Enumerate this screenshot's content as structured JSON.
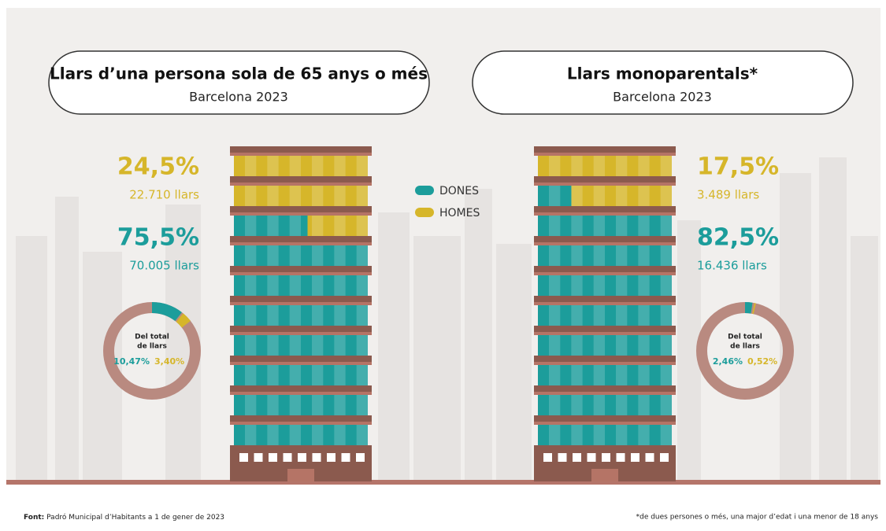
{
  "legend": [
    {
      "name": "DONES",
      "color": "#1c9d9b"
    },
    {
      "name": "HOMES",
      "color": "#d6b62a"
    }
  ],
  "panels": [
    {
      "title": "Llars d’una persona sola de 65 anys o més",
      "subtitle": "Barcelona 2023",
      "shares": [
        {
          "value": 24.5,
          "label": "24,5%",
          "count": "22.710 llars",
          "legend": 1
        },
        {
          "value": 75.5,
          "label": "75,5%",
          "count": "70.005 llars",
          "legend": 0
        }
      ],
      "donut": {
        "text": [
          "Del total",
          "de llars"
        ],
        "values": [
          {
            "value": 10.47,
            "label": "10,47%",
            "legend": 0
          },
          {
            "value": 3.4,
            "label": "3,40%",
            "legend": 1
          }
        ]
      }
    },
    {
      "title": "Llars monoparentals*",
      "subtitle": "Barcelona 2023",
      "shares": [
        {
          "value": 17.5,
          "label": "17,5%",
          "count": "3.489 llars",
          "legend": 1
        },
        {
          "value": 82.5,
          "label": "82,5%",
          "count": "16.436 llars",
          "legend": 0
        }
      ],
      "donut": {
        "text": [
          "Del total",
          "de llars"
        ],
        "values": [
          {
            "value": 2.46,
            "label": "2,46%",
            "legend": 0
          },
          {
            "value": 0.52,
            "label": "0,52%",
            "legend": 1
          }
        ]
      }
    }
  ],
  "footer": {
    "source_label": "Font:",
    "source": "Padró Municipal d’Habitants a 1 de gener de 2023",
    "note": "*de dues persones o més, una major d’edat i una menor de 18 anys"
  }
}
